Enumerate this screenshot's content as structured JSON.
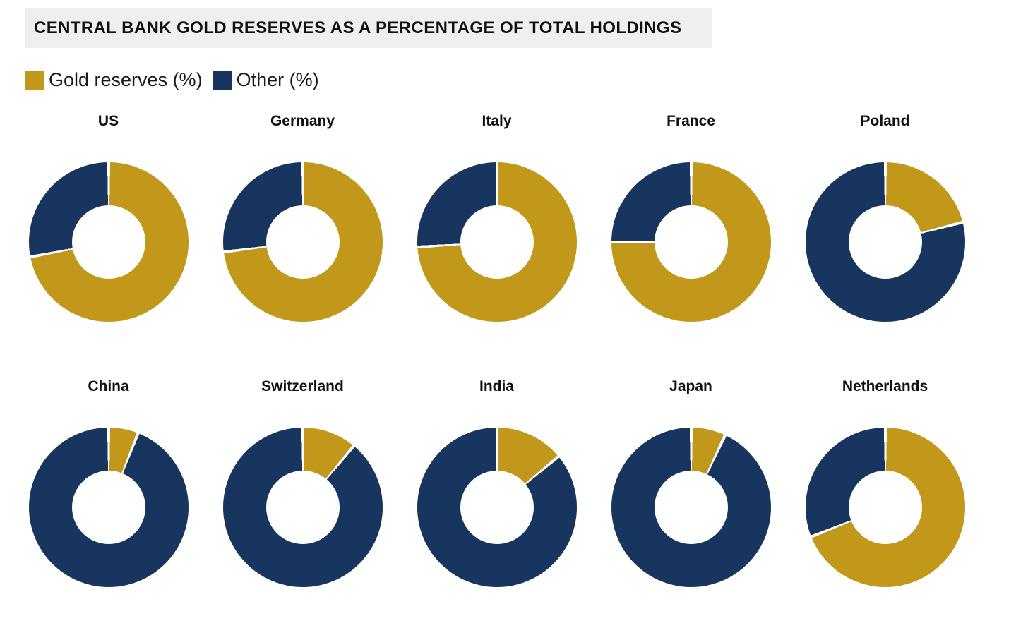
{
  "title": "CENTRAL BANK GOLD RESERVES AS A PERCENTAGE OF TOTAL HOLDINGS",
  "legend": {
    "items": [
      {
        "label": "Gold reserves (%)",
        "color": "#C2981B"
      },
      {
        "label": "Other (%)",
        "color": "#17355F"
      }
    ]
  },
  "colors": {
    "gold": "#C2981B",
    "other": "#17355F",
    "title_background": "#EFEFEF",
    "segment_gap": "#FFFFFF"
  },
  "chart_data": {
    "type": "pie",
    "variant": "donut_small_multiples",
    "title": "CENTRAL BANK GOLD RESERVES AS A PERCENTAGE OF TOTAL HOLDINGS",
    "series_labels": [
      "Gold reserves (%)",
      "Other (%)"
    ],
    "legend_position": "top-left",
    "start_angle_deg": 0,
    "direction": "clockwise",
    "inner_radius_ratio": 0.46,
    "grid": "2 rows x 5 columns",
    "countries": [
      {
        "name": "US",
        "gold_pct": 72,
        "other_pct": 28
      },
      {
        "name": "Germany",
        "gold_pct": 73,
        "other_pct": 27
      },
      {
        "name": "Italy",
        "gold_pct": 74,
        "other_pct": 26
      },
      {
        "name": "France",
        "gold_pct": 75,
        "other_pct": 25
      },
      {
        "name": "Poland",
        "gold_pct": 21,
        "other_pct": 79
      },
      {
        "name": "China",
        "gold_pct": 6,
        "other_pct": 94
      },
      {
        "name": "Switzerland",
        "gold_pct": 11,
        "other_pct": 89
      },
      {
        "name": "India",
        "gold_pct": 14,
        "other_pct": 86
      },
      {
        "name": "Japan",
        "gold_pct": 7,
        "other_pct": 93
      },
      {
        "name": "Netherlands",
        "gold_pct": 69,
        "other_pct": 31
      }
    ]
  }
}
